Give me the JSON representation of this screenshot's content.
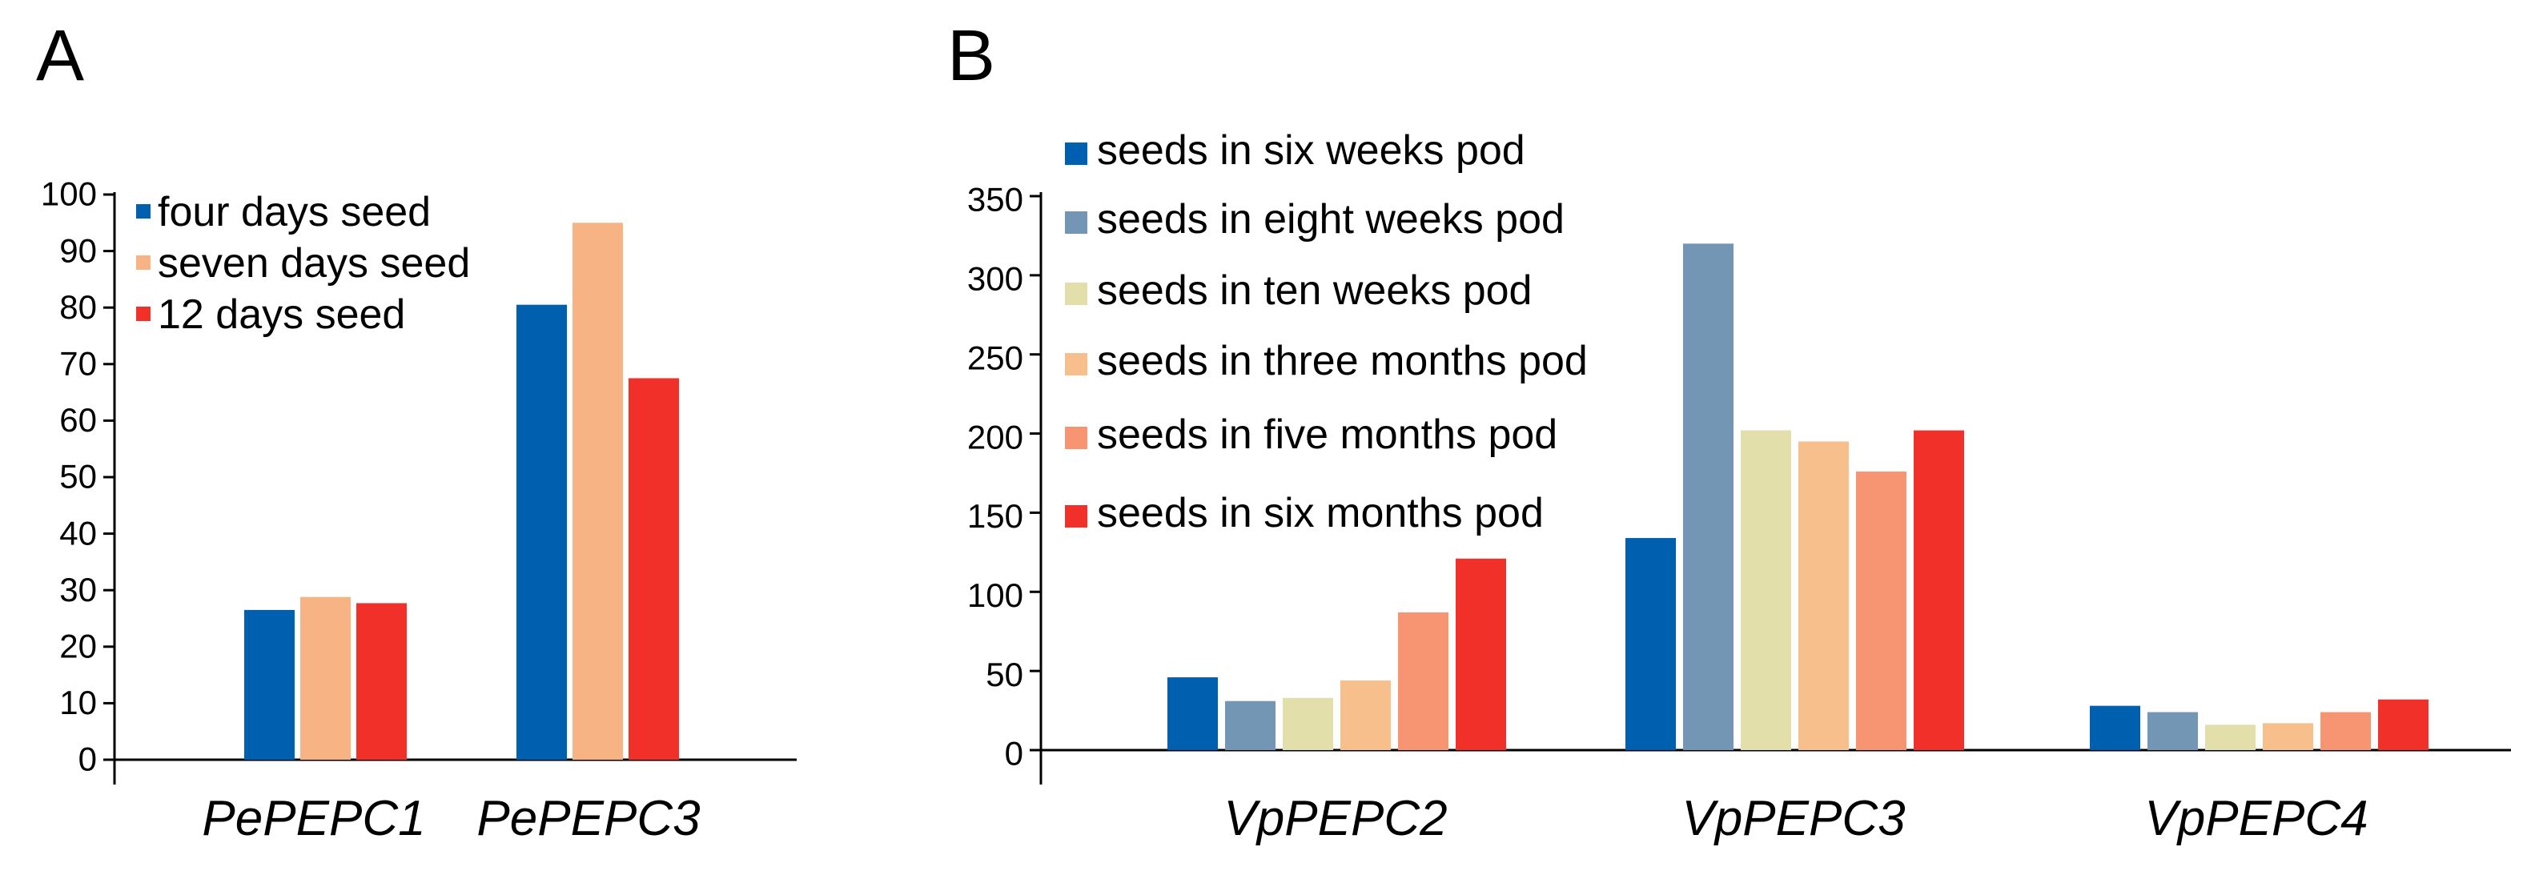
{
  "panels": [
    {
      "label": "A"
    },
    {
      "label": "B"
    }
  ],
  "chart_data": [
    {
      "type": "bar",
      "panel": "A",
      "categories": [
        "PePEPC1",
        "PePEPC3"
      ],
      "series": [
        {
          "name": "four days seed",
          "color": "#0060b0",
          "values": [
            26.5,
            80.5
          ]
        },
        {
          "name": "seven days seed",
          "color": "#f7b384",
          "values": [
            28.8,
            95
          ]
        },
        {
          "name": "12 days seed",
          "color": "#f2302a",
          "values": [
            27.7,
            67.5
          ]
        }
      ],
      "ylim": [
        0,
        100
      ],
      "yticks": [
        "0",
        "10",
        "20",
        "30",
        "40",
        "50",
        "60",
        "70",
        "80",
        "90",
        "100"
      ],
      "xlabel": "",
      "ylabel": "",
      "legend": "top-left",
      "grid": false
    },
    {
      "type": "bar",
      "panel": "B",
      "categories": [
        "VpPEPC2",
        "VpPEPC3",
        "VpPEPC4"
      ],
      "series": [
        {
          "name": "seeds in six weeks pod",
          "color": "#0060b0",
          "values": [
            46,
            134,
            28
          ]
        },
        {
          "name": "seeds in eight weeks pod",
          "color": "#7496b5",
          "values": [
            31,
            320,
            24
          ]
        },
        {
          "name": "seeds in ten weeks pod",
          "color": "#e2dfab",
          "values": [
            33,
            202,
            16
          ]
        },
        {
          "name": "seeds in three months pod",
          "color": "#f7bf8c",
          "values": [
            44,
            195,
            17
          ]
        },
        {
          "name": "seeds in five months pod",
          "color": "#f79572",
          "values": [
            87,
            176,
            24
          ]
        },
        {
          "name": "seeds in six months pod",
          "color": "#f2302a",
          "values": [
            121,
            202,
            32
          ]
        }
      ],
      "ylim": [
        0,
        350
      ],
      "yticks": [
        "0",
        "50",
        "100",
        "150",
        "200",
        "250",
        "300",
        "350"
      ],
      "xlabel": "",
      "ylabel": "",
      "legend": "top-left",
      "grid": false
    }
  ]
}
